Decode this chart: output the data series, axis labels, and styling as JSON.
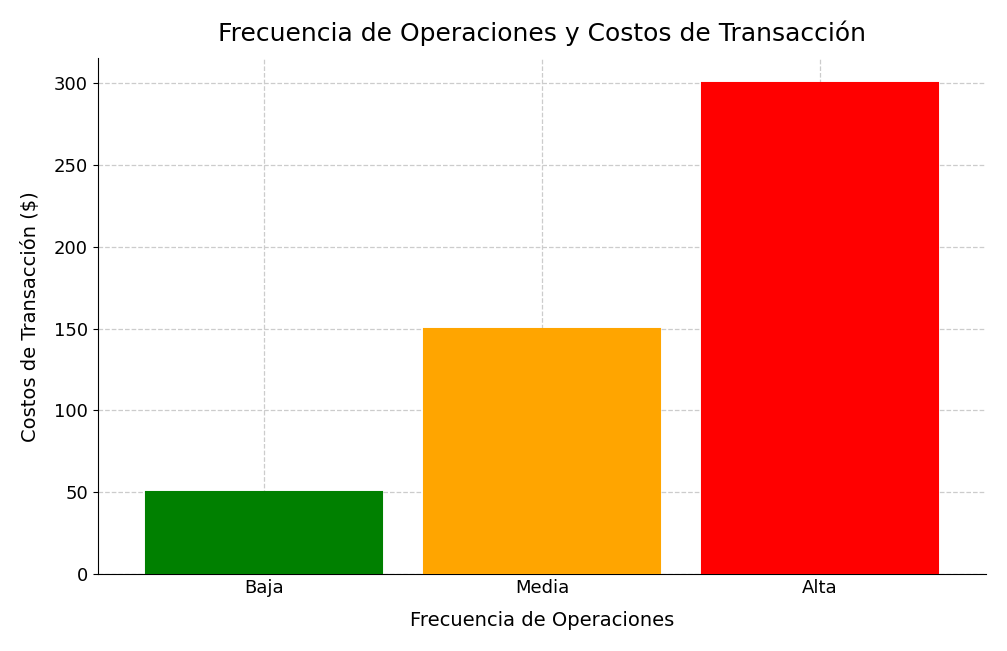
{
  "categories": [
    "Baja",
    "Media",
    "Alta"
  ],
  "values": [
    50,
    150,
    300
  ],
  "bar_colors": [
    "#008000",
    "#FFA500",
    "#FF0000"
  ],
  "bar_edge_colors": [
    "#008000",
    "#FFA500",
    "#FF0000"
  ],
  "title": "Frecuencia de Operaciones y Costos de Transacción",
  "xlabel": "Frecuencia de Operaciones",
  "ylabel": "Costos de Transacción ($)",
  "ylim": [
    0,
    315
  ],
  "yticks": [
    0,
    50,
    100,
    150,
    200,
    250,
    300
  ],
  "title_fontsize": 18,
  "label_fontsize": 14,
  "tick_fontsize": 13,
  "bar_width": 0.85,
  "grid_color": "#cccccc",
  "background_color": "#ffffff"
}
